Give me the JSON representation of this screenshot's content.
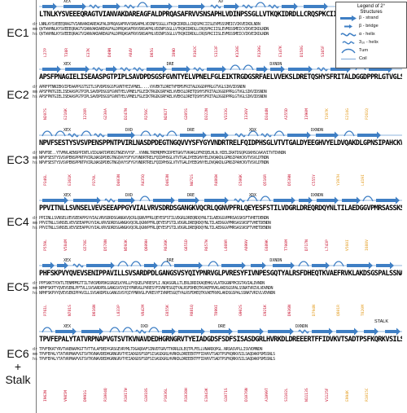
{
  "section_labels": [
    "EC1",
    "EC2",
    "EC3",
    "EC4",
    "EC5",
    "EC6",
    "+",
    "Stalk"
  ],
  "legend": {
    "title_line1": "Legend of 2°",
    "title_line2": "Structures",
    "items": [
      {
        "label": "β - strand",
        "icon": "arrow-icon"
      },
      {
        "label": "β - bridge",
        "icon": "small-arrow-icon"
      },
      {
        "label": "α - helix",
        "icon": "helix-icon"
      },
      {
        "label": "3₁₀ - helix",
        "icon": "helix-icon"
      },
      {
        "label": "Turn",
        "icon": "turn-icon"
      },
      {
        "label": "Coil",
        "icon": "line-icon"
      }
    ],
    "colors": {
      "strand": "#3f7fc4",
      "helix": "#3f7fc4",
      "turn": "#3f7fc4",
      "coil": "#8fb4dd"
    }
  },
  "species_tags": [
    "dr",
    "mm",
    "hs"
  ],
  "blocks": [
    {
      "name": "EC1",
      "seq_main": "LTNLKYSVEEEQRAGTVIANVAKDAREAGFALDPRQASAFRVVSNSAPHLVDINPSSGLLVTKQKIDRDLLCRQSPKCIISLEVMSSSMEICVIKVEIKDLNDN",
      "seq_dr": "LNNLKYSVEEEQRAGTVIANVAKDAREAGFALDPRQASAFRVVSNSAPHLVDINPSSGLLVTKQKIDRDLLCRQSPKCIISLEVMSSSMEICVIKVEIKDLNDN",
      "seq_mm": "QVTWVHNLKYSVEEEQRAGTVIANVAKDAREAGFALDPRQASAFRVVSNSAPHLVDINPSSGLLVTKQKIDRDLLCRQSPKCIISLEVMSSSMEICVIKVEIKDLNDN",
      "seq_hs": "QVTWVHNLKYSVEEEQRAGTVIANVAKDAREAGFALDPRQASAFRVVSNSAPHLVDINPSSGLLVTKQKIDRDLLCRQSPKCIISLEVMSSSMEICVIKVEIKDLNDN",
      "motifs": [
        "XEX",
        "XD"
      ],
      "ann_red": [
        "L27P",
        "T38R",
        "E37K",
        "D49N",
        "A84V",
        "D85G",
        "I89D",
        "R102C",
        "S113F",
        "K130E",
        "R139G",
        "E147K",
        "D158G",
        "S165F",
        "I179F"
      ],
      "ann_orange": [
        "V150I"
      ]
    },
    {
      "name": "EC2",
      "seq_main": "APSFPNAGIELISEAASPGTPIPLSAVDPDSGSFGVNTYELVPNELFGLEIKTRGDGSRFAELVVEKSLDRETQSHYSFRITALDGGDPPRLGTVGLSIKVIDSNDN",
      "seq_dr": "APRFPTNNIEKVIPEAAPPGSTSITLSPVDPDSGSFGVNTYEIVPNEL....VVVEKTLDRETVFEMSFRITALDGGDPPRLGTVGLSIKVIDSNDN",
      "seq_mm": "APSFPNTGIELISEAASPGTPIPLSAVDPDSGSFGVNTYELVPNELFGLEIKTRGDGSRFAELVVEKSLDRETQSHYSFRITALDGGDPPRLGTVGLSIKVIDSNDN",
      "seq_hs": "APSFPNTGIELISEAASPGTPIPLSAVDPDSGSFGVNTYELVPNELFGLEIKTRGDGSRFAELVVEKSLDRETQSHYSFRITALDGGDPPRLGTVGLSIKVIDSNDN",
      "motifs": [
        "XEX",
        "DRE",
        "DXNDN"
      ],
      "ann_red": [
        "N207S",
        "E216K",
        "I228R",
        "G230A",
        "D247N",
        "R256C",
        "N282T",
        "G305S",
        "D322N",
        "V333G",
        "I336V",
        "D344N",
        "A355D",
        "I390M"
      ],
      "ann_orange": [
        "T207K",
        "E214G",
        "P261Q"
      ]
    },
    {
      "name": "EC3",
      "seq_main": "NPVFSESTYSVSVPENSPPNTPVIRLNASDPDEGTNGQVVYSFYGYVNDRTRELFQIDPHSGLVTVTGALDYEEGHVYELDVQAKDLGPNSIPAHCKVTVSVLDTNDN",
      "seq_dr": "NPVFDE..YTVMVLAENSPPINTLVIDLNATDPDEGTNGEVVYSF..VVNNLTREMQMFKIDPETGKVTVKAKLDFKEQELHLN.HIELIRATDSQPGSKHSCAAVVITVTDVNDN",
      "seq_mm": "NPVFSESTYSVSVPENSPPNTPVIRLNASDPDEGTNGQVVYSFYGYVNDRTRELFQIDPHSGLVTVTGALDYEEGHVYELDVQAKDLGPNSIPAHCKVTVSVLDTNDN",
      "seq_hs": "NPVFSESTYSVSVPENSPPNTPVIRLNASDPDEGTNGQVVYSFYGYVNDRTRELFQIDPHSGLVTVTGALDYEEGHVYELDVQAKDLGPNSIPAHCKVTVSVLDTNDN",
      "motifs": [
        "XEX",
        "DXD",
        "DRE",
        "XDX",
        "DXNDN"
      ],
      "ann_red": [
        "P346L",
        "E361K",
        "P370L",
        "D403N",
        "R435Q",
        "D463N",
        "N471S",
        "R486W",
        "E506K",
        "Q516R",
        "D539N",
        "C555Y"
      ],
      "ann_orange": [
        "Y397H",
        "L419I"
      ]
    },
    {
      "name": "EC4",
      "seq_main": "PPVITNLLSVNSELVEVSEEAPPGYVIALVRVSDRDSGANGKVQCRLQGNVPFRLQEYESFSTILVDGRLDREQRDQYNLTILAEDGGVPMRSASSKSFTVHETDENDN",
      "seq_dr": "PPIINLLSVNSELVEVSEEAPPGYVIALVRVSDRDSGANGKVQCRLQGNVPFRLQEYESFSTILVDGRLDREQRDQYNLTILAEDGGVPMRSASSKSFTVHETDENDN",
      "seq_mm": "PPVITNLLSVNSELVEVSEEAPPGYVIALVRVSDRDSGANGKVQCRLQGNVPFRLQEYESFSTILVDGRLDREQRDQYNLTILAEDGGVPMRSASSKSFTVHETDENDN",
      "seq_hs": "PPVITNLLSVNSELVEVSEEAPPGYVIALVRVSDRDSGANGKVQCRLQGNVPFRLQEYESFSTILVDGRLDREQRDQYNLTILAEDGGVPMRSASSKSFTVHETDENDN",
      "motifs": [
        "XEX",
        "DXD",
        "DRE",
        "XDX",
        "DXNDN"
      ],
      "ann_red": [
        "P559L",
        "V584M",
        "G578E",
        "D578N",
        "N593K",
        "Q609H",
        "R636K",
        "G651D",
        "R657W",
        "L669R",
        "A699V",
        "E689K",
        "T700M",
        "D717N",
        "L743P"
      ],
      "ann_orange": [
        "V560I",
        "I688V"
      ]
    },
    {
      "name": "EC5",
      "seq_main": "PHFSKPVYQVEVSENIPPAVILLSVSARDPDLGANGSVSYQIYPNRVGLPVRESYFIVNPESGQTYALRSFDHEQTKVAEFRVKLAKDSGSPALSSNATVRIVLVDVNDN",
      "seq_dr": "PPFSKKTYOVTLTENMPMGTTILTVKSMDPDKGSRGELKYKLLPYQGELPVRESFLI.NQASGRLLTLERLDRDIKAQEHKLVLATDGGNPPKIGTAVIALDVNDN",
      "seq_mm": "NPHFSKPTYQVEVSENLPPTVLLSVSARDPDLGANGSVSYQIYPNRVGLPVRESYFIVNPESGQTYALRSFDHEQTKVAEFRVKLAKDSGSPALSSNATVRIVLVDVNDN",
      "seq_hs": "NPHFSKPVYQVEVSENIPPAVILLSVSARDPDLGANGSVSYQIYPNRVGLPVRESYFIVNPESGQTYALRSFDHEQTKVAEFRVKLAKDSGSPALSSNATVRIVLVDVNDN",
      "motifs": [
        "XEX",
        "DRE",
        "DXNDN"
      ],
      "ann_red": [
        "P761L",
        "N781S",
        "D816N",
        "L833P",
        "V842M",
        "E855K",
        "R881Q",
        "T899I",
        "G902S",
        "E921K",
        "D936N"
      ],
      "ann_orange": [
        "D794N",
        "Q801R",
        "T820M"
      ]
    },
    {
      "name": "EC6",
      "seq_main": "TPVFEPALYTATVRPNAPVGTSVTKVNAVDEDHGRNGRVTYEIADGDSFSDFSISASDGRLHVRKDLDREEERTFFIDVKVTSADTPSFKQRKVSILSAQDAKPSMSSNLS",
      "seq_dr": "TPVFEKATYRVTVAENAPKGTTVTTVLAFDEDYGRSGEVRYMLTDGAQDAFSINVDTGRVTTKRRLDLEQTPLFELLVNARDQPGL.NRSASVPLLISVVDMNDN",
      "seq_mm": "TPVFEPALYTATVRPNAPVGTSVTKVNAVDEDHGRNGRVTYEIADGDSFSDFSISASDGRLHVRKDLDREEERTFFIDVKVTSADTPSFKQRKVSILSAQDAKPSMSSNLS",
      "seq_hs": "TPVFEPALYTATVRPNAPVGTSVTKVNAVDEDHGRNGRVTYEIADGDSFSDFSISASDGRLHVRKDLDREEERTFFIDVKVTSADTPSFKQRKVSILSAQDAKPSMSSNLS",
      "motifs": [
        "XEX",
        "DXD",
        "DRE",
        "DXNDN"
      ],
      "stalk_label": "STALK",
      "ann_red": [
        "I962N",
        "V985M",
        "D991G",
        "R1004Q",
        "R1017W",
        "G1018S",
        "P1036L",
        "R1038H",
        "E1043K",
        "G1071S",
        "D1076N",
        "A1099T",
        "S1102L",
        "N1113S",
        "V1125F"
      ],
      "ann_orange": [
        "E994K",
        "R1015C"
      ]
    }
  ]
}
